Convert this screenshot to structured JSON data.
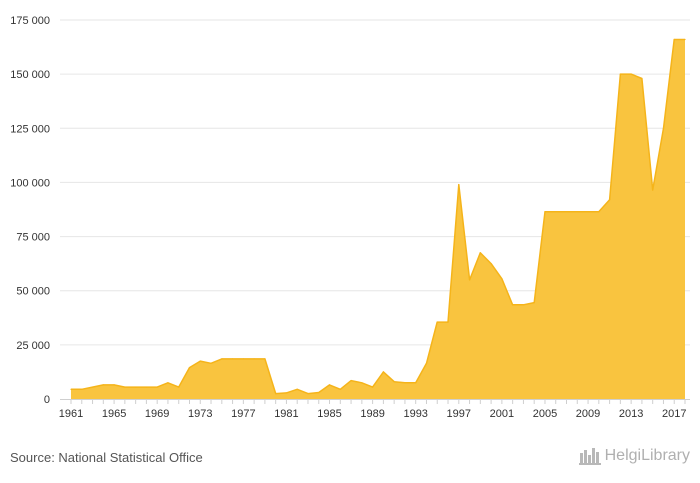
{
  "chart_data": {
    "type": "area",
    "title": "",
    "xlabel": "",
    "ylabel": "",
    "x": [
      1961,
      1962,
      1963,
      1964,
      1965,
      1966,
      1967,
      1968,
      1969,
      1970,
      1971,
      1972,
      1973,
      1974,
      1975,
      1976,
      1977,
      1978,
      1979,
      1980,
      1981,
      1982,
      1983,
      1984,
      1985,
      1986,
      1987,
      1988,
      1989,
      1990,
      1991,
      1992,
      1993,
      1994,
      1995,
      1996,
      1997,
      1998,
      1999,
      2000,
      2001,
      2002,
      2003,
      2004,
      2005,
      2006,
      2007,
      2008,
      2009,
      2010,
      2011,
      2012,
      2013,
      2014,
      2015,
      2016,
      2017,
      2018
    ],
    "values": [
      4500,
      4500,
      5500,
      6500,
      6500,
      5500,
      5500,
      5500,
      5500,
      7500,
      5500,
      14500,
      17500,
      16500,
      18500,
      18500,
      18500,
      18500,
      18500,
      2500,
      2800,
      4500,
      2500,
      3000,
      6500,
      4500,
      8500,
      7500,
      5500,
      12500,
      8000,
      7500,
      7500,
      16500,
      35500,
      35500,
      99000,
      55000,
      67500,
      62500,
      55500,
      43500,
      43500,
      44500,
      86500,
      86500,
      86500,
      86500,
      86500,
      86500,
      92000,
      150000,
      150000,
      148000,
      96500,
      125000,
      166000,
      166000
    ],
    "ylim": [
      0,
      175000
    ],
    "x_ticks": [
      "1961",
      "1965",
      "1969",
      "1973",
      "1977",
      "1981",
      "1985",
      "1989",
      "1993",
      "1997",
      "2001",
      "2005",
      "2009",
      "2013",
      "2017"
    ],
    "y_ticks": [
      "0",
      "25 000",
      "50 000",
      "75 000",
      "100 000",
      "125 000",
      "150 000",
      "175 000"
    ],
    "grid": true,
    "legend": "none",
    "colors": {
      "fill": "#f9c43f",
      "line": "#f5b41a",
      "grid": "#e6e6e6",
      "axis": "#cfcfcf"
    }
  },
  "footer": {
    "source": "Source: National Statistical Office",
    "brand": "HelgiLibrary"
  }
}
